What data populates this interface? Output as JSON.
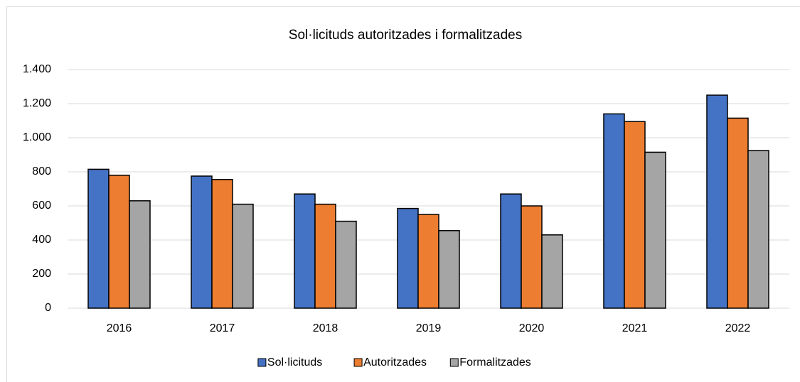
{
  "chart_data": {
    "type": "bar",
    "title": "Sol·licituds autoritzades i formalitzades",
    "categories": [
      "2016",
      "2017",
      "2018",
      "2019",
      "2020",
      "2021",
      "2022"
    ],
    "series": [
      {
        "name": "Sol·licituds",
        "color": "#4472c4",
        "values": [
          815,
          775,
          670,
          585,
          670,
          1140,
          1250
        ]
      },
      {
        "name": "Autoritzades",
        "color": "#ed7d31",
        "values": [
          780,
          755,
          610,
          550,
          600,
          1095,
          1115
        ]
      },
      {
        "name": "Formalitzades",
        "color": "#a5a5a5",
        "values": [
          630,
          610,
          510,
          455,
          430,
          915,
          925
        ]
      }
    ],
    "ylim": [
      0,
      1400
    ],
    "yticks": [
      0,
      200,
      400,
      600,
      800,
      {
        "value": 1000,
        "label": "1.000"
      },
      {
        "value": 1200,
        "label": "1.200"
      },
      {
        "value": 1400,
        "label": "1.400"
      }
    ],
    "grid": true,
    "legend": "bottom"
  }
}
